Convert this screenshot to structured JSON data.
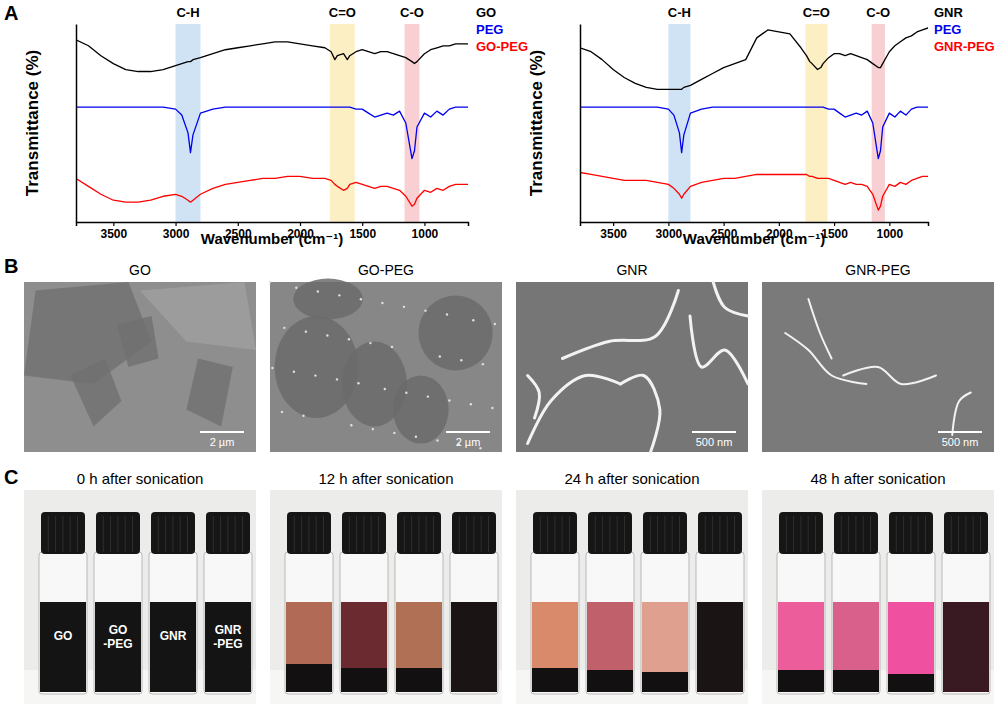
{
  "panel_labels": [
    "A",
    "B",
    "C"
  ],
  "chart_data": [
    {
      "type": "line",
      "x_label": "Wavenumber (cm⁻¹)",
      "y_label": "Transmittance (%)",
      "xlim": [
        3800,
        650
      ],
      "xticks": [
        3500,
        3000,
        2500,
        2000,
        1500,
        1000
      ],
      "ylim": [
        0,
        100
      ],
      "tick_labels": "x",
      "legend": "top-right",
      "bands": [
        {
          "label": "C-H",
          "x": [
            3000,
            2800
          ],
          "color": "#cfe3f5"
        },
        {
          "label": "C=O",
          "x": [
            1760,
            1560
          ],
          "color": "#fcefc4"
        },
        {
          "label": "C-O",
          "x": [
            1160,
            1040
          ],
          "color": "#f8d0d3"
        }
      ],
      "x": [
        3800,
        3700,
        3600,
        3500,
        3400,
        3300,
        3200,
        3100,
        3000,
        2950,
        2900,
        2880,
        2860,
        2800,
        2700,
        2600,
        2500,
        2400,
        2300,
        2200,
        2100,
        2000,
        1900,
        1800,
        1750,
        1720,
        1700,
        1650,
        1620,
        1600,
        1550,
        1500,
        1450,
        1400,
        1350,
        1300,
        1250,
        1200,
        1150,
        1100,
        1080,
        1060,
        1000,
        950,
        900,
        850,
        800,
        750,
        700,
        650
      ],
      "series": [
        {
          "name": "GO",
          "color": "#000000",
          "values": [
            92,
            89,
            84,
            80,
            77,
            76,
            76,
            77,
            79,
            80,
            81,
            81,
            82,
            83,
            85,
            87,
            88,
            89,
            90,
            91,
            91,
            90,
            89,
            88,
            86,
            82,
            84,
            85,
            82,
            84,
            86,
            87,
            86,
            85,
            86,
            86,
            85,
            84,
            83,
            81,
            80,
            81,
            85,
            87,
            88,
            89,
            89,
            90,
            90,
            90
          ]
        },
        {
          "name": "PEG",
          "color": "#0000ee",
          "values": [
            58,
            58,
            58,
            58,
            58,
            58,
            58,
            58,
            57,
            54,
            45,
            35,
            44,
            55,
            57,
            58,
            58,
            58,
            58,
            58,
            58,
            58,
            58,
            58,
            58,
            58,
            58,
            58,
            58,
            58,
            57,
            57,
            55,
            53,
            54,
            55,
            54,
            56,
            50,
            32,
            36,
            48,
            55,
            53,
            56,
            54,
            57,
            58,
            58,
            58
          ]
        },
        {
          "name": "GO-PEG",
          "color": "#ff0000",
          "values": [
            22,
            18,
            14,
            11,
            10,
            10,
            11,
            13,
            14,
            13,
            11,
            10,
            11,
            14,
            17,
            19,
            20,
            21,
            22,
            22,
            23,
            23,
            22,
            22,
            21,
            19,
            18,
            16,
            17,
            19,
            20,
            19,
            18,
            17,
            18,
            18,
            17,
            16,
            13,
            8,
            9,
            12,
            16,
            15,
            17,
            16,
            18,
            19,
            19,
            19
          ]
        }
      ]
    },
    {
      "type": "line",
      "x_label": "Wavenumber (cm⁻¹)",
      "y_label": "Transmittance (%)",
      "xlim": [
        3800,
        650
      ],
      "xticks": [
        3500,
        3000,
        2500,
        2000,
        1500,
        1000
      ],
      "ylim": [
        0,
        100
      ],
      "tick_labels": "x",
      "legend": "top-right",
      "bands": [
        {
          "label": "C-H",
          "x": [
            3000,
            2800
          ],
          "color": "#cfe3f5"
        },
        {
          "label": "C=O",
          "x": [
            1760,
            1560
          ],
          "color": "#fcefc4"
        },
        {
          "label": "C-O",
          "x": [
            1160,
            1040
          ],
          "color": "#f8d0d3"
        }
      ],
      "x": [
        3800,
        3700,
        3600,
        3500,
        3400,
        3300,
        3200,
        3100,
        3000,
        2950,
        2900,
        2880,
        2860,
        2800,
        2700,
        2600,
        2500,
        2400,
        2300,
        2200,
        2100,
        2000,
        1900,
        1800,
        1750,
        1720,
        1700,
        1650,
        1620,
        1600,
        1550,
        1500,
        1450,
        1400,
        1350,
        1300,
        1250,
        1200,
        1150,
        1100,
        1080,
        1060,
        1000,
        950,
        900,
        850,
        800,
        750,
        700,
        650
      ],
      "series": [
        {
          "name": "GNR",
          "color": "#000000",
          "values": [
            88,
            86,
            82,
            77,
            73,
            70,
            68,
            67,
            67,
            67,
            67,
            67,
            68,
            69,
            72,
            75,
            78,
            80,
            82,
            93,
            97,
            96,
            95,
            88,
            84,
            81,
            80,
            77,
            78,
            80,
            83,
            85,
            85,
            84,
            85,
            84,
            83,
            82,
            80,
            78,
            78,
            80,
            86,
            89,
            91,
            93,
            94,
            96,
            97,
            98
          ]
        },
        {
          "name": "PEG",
          "color": "#0000ee",
          "values": [
            58,
            58,
            58,
            58,
            58,
            58,
            58,
            58,
            57,
            54,
            45,
            35,
            44,
            55,
            57,
            58,
            58,
            58,
            58,
            58,
            58,
            58,
            58,
            58,
            58,
            58,
            58,
            58,
            58,
            58,
            57,
            57,
            55,
            53,
            54,
            55,
            54,
            56,
            50,
            32,
            36,
            48,
            55,
            53,
            56,
            54,
            57,
            58,
            58,
            58
          ]
        },
        {
          "name": "GNR-PEG",
          "color": "#ff0000",
          "values": [
            25,
            24,
            23,
            22,
            21,
            21,
            21,
            20,
            19,
            17,
            14,
            12,
            14,
            18,
            20,
            21,
            22,
            22,
            23,
            24,
            24,
            24,
            24,
            24,
            24,
            23,
            23,
            22,
            22,
            22,
            22,
            21,
            20,
            19,
            20,
            19,
            19,
            18,
            14,
            6,
            8,
            13,
            19,
            18,
            20,
            19,
            21,
            22,
            23,
            23
          ]
        }
      ]
    }
  ],
  "sem_images": [
    {
      "title": "GO",
      "scale_bar": "2 µm"
    },
    {
      "title": "GO-PEG",
      "scale_bar": "2 µm"
    },
    {
      "title": "GNR",
      "scale_bar": "500 nm"
    },
    {
      "title": "GNR-PEG",
      "scale_bar": "500 nm"
    }
  ],
  "vial_photos": [
    {
      "title": "0 h after sonication",
      "vial_labels": [
        "GO",
        "GO-PEG",
        "GNR",
        "GNR-PEG"
      ]
    },
    {
      "title": "12 h after sonication"
    },
    {
      "title": "24 h after sonication"
    },
    {
      "title": "48 h after sonication"
    }
  ]
}
